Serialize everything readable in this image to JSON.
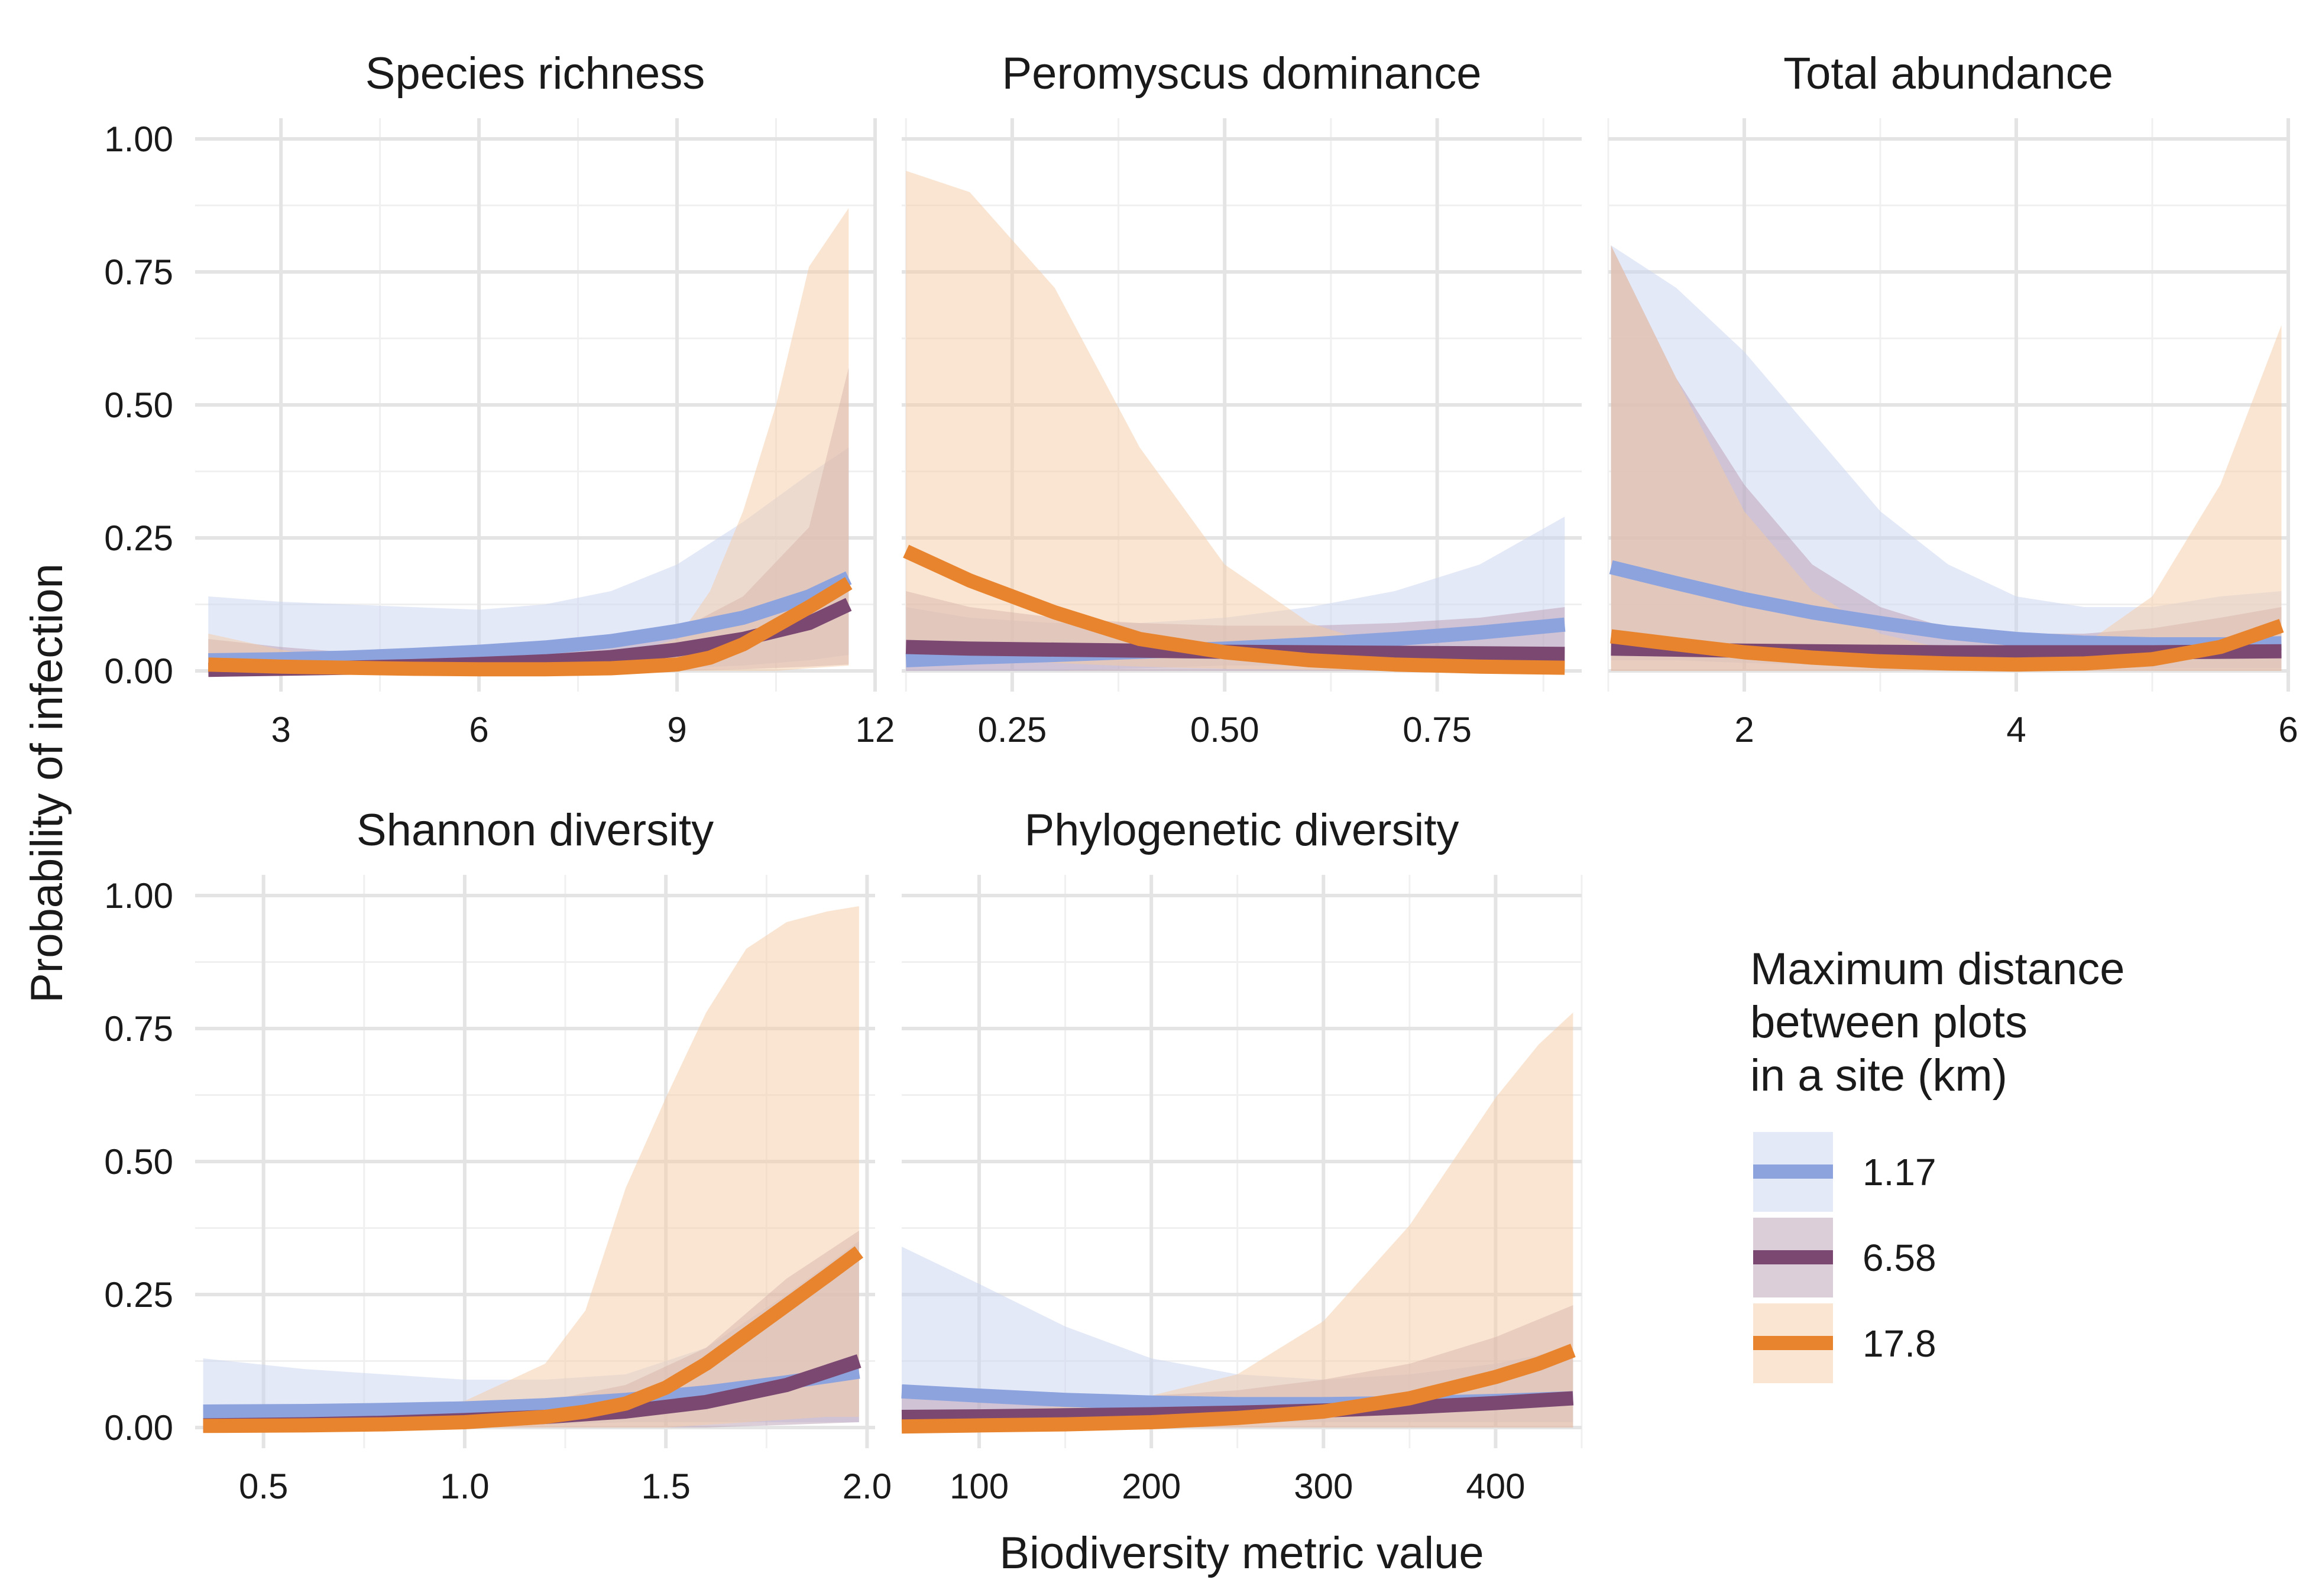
{
  "chart_data": {
    "type": "line",
    "ylabel": "Probability of infection",
    "xlabel": "Biodiversity metric value",
    "ylim": [
      0,
      1
    ],
    "y_ticks": [
      0,
      0.25,
      0.5,
      0.75,
      1
    ],
    "y_tick_labels": [
      "0.00",
      "0.25",
      "0.50",
      "0.75",
      "1.00"
    ],
    "grid": true,
    "facet_order": [
      "richness",
      "dominance",
      "abundance",
      "shannon",
      "phylo"
    ],
    "legend": {
      "position": "right",
      "title": [
        "Maximum distance",
        "between plots",
        "in a site (km)"
      ],
      "entries": [
        {
          "key": "s117",
          "label": "1.17",
          "line_color": "#8DA3DE",
          "fill_color": "#C9D3F1"
        },
        {
          "key": "s658",
          "label": "6.58",
          "line_color": "#7B4871",
          "fill_color": "#B99DB2"
        },
        {
          "key": "s178",
          "label": "17.8",
          "line_color": "#E8842E",
          "fill_color": "#F6CBA6"
        }
      ]
    },
    "facets": {
      "richness": {
        "title": "Species richness",
        "xlim": [
          1.7,
          12
        ],
        "x_ticks": [
          3,
          6,
          9,
          12
        ],
        "x_tick_labels": [
          "3",
          "6",
          "9",
          "12"
        ],
        "series": {
          "s117": {
            "x": [
              1.9,
              3,
              4,
              5,
              6,
              7,
              8,
              9,
              10,
              11,
              11.6
            ],
            "y": [
              0.02,
              0.022,
              0.025,
              0.03,
              0.036,
              0.044,
              0.056,
              0.075,
              0.1,
              0.14,
              0.175
            ],
            "lo": [
              0,
              0,
              0,
              0,
              0,
              0,
              0,
              0.005,
              0.01,
              0.02,
              0.03
            ],
            "hi": [
              0.14,
              0.13,
              0.125,
              0.12,
              0.115,
              0.125,
              0.15,
              0.2,
              0.28,
              0.37,
              0.42
            ]
          },
          "s658": {
            "x": [
              1.9,
              3,
              4,
              5,
              6,
              7,
              8,
              9,
              10,
              11,
              11.6
            ],
            "y": [
              0.002,
              0.004,
              0.006,
              0.009,
              0.013,
              0.018,
              0.026,
              0.04,
              0.06,
              0.09,
              0.125
            ],
            "lo": [
              0,
              0,
              0,
              0,
              0,
              0,
              0,
              0,
              0.003,
              0.008,
              0.012
            ],
            "hi": [
              0.06,
              0.045,
              0.035,
              0.03,
              0.028,
              0.032,
              0.045,
              0.075,
              0.14,
              0.27,
              0.57
            ]
          },
          "s178": {
            "x": [
              1.9,
              3,
              4,
              5,
              6,
              7,
              8,
              9,
              9.5,
              10,
              10.5,
              11,
              11.6
            ],
            "y": [
              0.012,
              0.008,
              0.006,
              0.004,
              0.003,
              0.003,
              0.005,
              0.012,
              0.025,
              0.05,
              0.085,
              0.12,
              0.165
            ],
            "lo": [
              0,
              0,
              0,
              0,
              0,
              0,
              0,
              0,
              0,
              0,
              0,
              0.005,
              0.01
            ],
            "hi": [
              0.07,
              0.04,
              0.02,
              0.015,
              0.012,
              0.013,
              0.025,
              0.06,
              0.15,
              0.3,
              0.5,
              0.76,
              0.87
            ]
          }
        }
      },
      "dominance": {
        "title": "Peromyscus dominance",
        "xlim": [
          0.12,
          0.92
        ],
        "x_ticks": [
          0.25,
          0.5,
          0.75
        ],
        "x_tick_labels": [
          "0.25",
          "0.50",
          "0.75"
        ],
        "series": {
          "s117": {
            "x": [
              0.125,
              0.2,
              0.3,
              0.4,
              0.5,
              0.6,
              0.7,
              0.8,
              0.9
            ],
            "y": [
              0.02,
              0.025,
              0.03,
              0.036,
              0.042,
              0.05,
              0.06,
              0.072,
              0.087
            ],
            "lo": [
              0,
              0,
              0,
              0.005,
              0.01,
              0.01,
              0.01,
              0.01,
              0.01
            ],
            "hi": [
              0.12,
              0.1,
              0.09,
              0.09,
              0.1,
              0.12,
              0.15,
              0.2,
              0.29
            ]
          },
          "s658": {
            "x": [
              0.125,
              0.2,
              0.3,
              0.4,
              0.5,
              0.6,
              0.7,
              0.8,
              0.9
            ],
            "y": [
              0.045,
              0.042,
              0.04,
              0.038,
              0.036,
              0.035,
              0.034,
              0.033,
              0.032
            ],
            "lo": [
              0,
              0,
              0,
              0,
              0,
              0,
              0,
              0,
              0
            ],
            "hi": [
              0.15,
              0.12,
              0.1,
              0.09,
              0.085,
              0.085,
              0.09,
              0.1,
              0.12
            ]
          },
          "s178": {
            "x": [
              0.125,
              0.2,
              0.3,
              0.4,
              0.5,
              0.6,
              0.7,
              0.8,
              0.9
            ],
            "y": [
              0.225,
              0.17,
              0.11,
              0.06,
              0.035,
              0.02,
              0.012,
              0.008,
              0.006
            ],
            "lo": [
              0.05,
              0.03,
              0.015,
              0.008,
              0.004,
              0.002,
              0.001,
              0,
              0
            ],
            "hi": [
              0.94,
              0.9,
              0.72,
              0.42,
              0.2,
              0.09,
              0.04,
              0.02,
              0.015
            ]
          }
        }
      },
      "abundance": {
        "title": "Total abundance",
        "xlim": [
          1,
          6
        ],
        "x_ticks": [
          2,
          4,
          6
        ],
        "x_tick_labels": [
          "2",
          "4",
          "6"
        ],
        "series": {
          "s117": {
            "x": [
              1.02,
              1.5,
              2,
              2.5,
              3,
              3.5,
              4,
              4.5,
              5,
              5.5,
              5.95
            ],
            "y": [
              0.195,
              0.165,
              0.135,
              0.11,
              0.09,
              0.072,
              0.06,
              0.053,
              0.05,
              0.05,
              0.052
            ],
            "lo": [
              0.02,
              0.02,
              0.015,
              0.012,
              0.01,
              0.008,
              0.007,
              0.006,
              0.005,
              0.005,
              0.005
            ],
            "hi": [
              0.8,
              0.72,
              0.6,
              0.45,
              0.3,
              0.2,
              0.14,
              0.12,
              0.12,
              0.14,
              0.15
            ]
          },
          "s658": {
            "x": [
              1.02,
              1.5,
              2,
              2.5,
              3,
              3.5,
              4,
              4.5,
              5,
              5.5,
              5.95
            ],
            "y": [
              0.042,
              0.04,
              0.038,
              0.037,
              0.036,
              0.035,
              0.035,
              0.035,
              0.035,
              0.036,
              0.037
            ],
            "lo": [
              0,
              0,
              0,
              0,
              0,
              0,
              0,
              0,
              0,
              0,
              0
            ],
            "hi": [
              0.8,
              0.55,
              0.35,
              0.2,
              0.12,
              0.08,
              0.07,
              0.07,
              0.08,
              0.1,
              0.12
            ]
          },
          "s178": {
            "x": [
              1.02,
              1.5,
              2,
              2.5,
              3,
              3.5,
              4,
              4.5,
              5,
              5.5,
              5.95
            ],
            "y": [
              0.065,
              0.05,
              0.035,
              0.025,
              0.018,
              0.014,
              0.012,
              0.014,
              0.022,
              0.045,
              0.085
            ],
            "lo": [
              0,
              0,
              0,
              0,
              0,
              0,
              0,
              0,
              0,
              0,
              0
            ],
            "hi": [
              0.8,
              0.55,
              0.3,
              0.15,
              0.07,
              0.04,
              0.03,
              0.05,
              0.14,
              0.35,
              0.65
            ]
          }
        }
      },
      "shannon": {
        "title": "Shannon diversity",
        "xlim": [
          0.33,
          2.02
        ],
        "x_ticks": [
          0.5,
          1.0,
          1.5,
          2.0
        ],
        "x_tick_labels": [
          "0.5",
          "1.0",
          "1.5",
          "2.0"
        ],
        "series": {
          "s117": {
            "x": [
              0.35,
              0.6,
              0.8,
              1.0,
              1.2,
              1.4,
              1.6,
              1.8,
              1.98
            ],
            "y": [
              0.03,
              0.031,
              0.033,
              0.036,
              0.042,
              0.052,
              0.066,
              0.085,
              0.105
            ],
            "lo": [
              0,
              0,
              0,
              0,
              0.005,
              0.01,
              0.01,
              0.01,
              0.01
            ],
            "hi": [
              0.13,
              0.11,
              0.1,
              0.09,
              0.09,
              0.1,
              0.15,
              0.25,
              0.35
            ]
          },
          "s658": {
            "x": [
              0.35,
              0.6,
              0.8,
              1.0,
              1.2,
              1.4,
              1.6,
              1.8,
              1.98
            ],
            "y": [
              0.004,
              0.006,
              0.009,
              0.014,
              0.02,
              0.03,
              0.048,
              0.08,
              0.125
            ],
            "lo": [
              0,
              0,
              0,
              0,
              0,
              0,
              0,
              0.005,
              0.01
            ],
            "hi": [
              0.04,
              0.035,
              0.035,
              0.04,
              0.05,
              0.08,
              0.15,
              0.28,
              0.37
            ]
          },
          "s178": {
            "x": [
              0.35,
              0.6,
              0.8,
              1.0,
              1.2,
              1.3,
              1.4,
              1.5,
              1.6,
              1.7,
              1.8,
              1.9,
              1.98
            ],
            "y": [
              0.003,
              0.004,
              0.006,
              0.01,
              0.02,
              0.03,
              0.045,
              0.075,
              0.12,
              0.175,
              0.23,
              0.285,
              0.33
            ],
            "lo": [
              0,
              0,
              0,
              0,
              0,
              0,
              0,
              0,
              0.005,
              0.01,
              0.015,
              0.02,
              0.02
            ],
            "hi": [
              0.035,
              0.03,
              0.035,
              0.05,
              0.12,
              0.22,
              0.45,
              0.62,
              0.78,
              0.9,
              0.95,
              0.97,
              0.98
            ]
          }
        }
      },
      "phylo": {
        "title": "Phylogenetic diversity",
        "xlim": [
          55,
          450
        ],
        "x_ticks": [
          100,
          200,
          300,
          400
        ],
        "x_tick_labels": [
          "100",
          "200",
          "300",
          "400"
        ],
        "series": {
          "s117": {
            "x": [
              55,
              100,
              150,
              200,
              250,
              300,
              350,
              400,
              445
            ],
            "y": [
              0.068,
              0.06,
              0.052,
              0.047,
              0.044,
              0.044,
              0.046,
              0.05,
              0.055
            ],
            "lo": [
              0.005,
              0.008,
              0.01,
              0.01,
              0.01,
              0.01,
              0.01,
              0.01,
              0.01
            ],
            "hi": [
              0.34,
              0.27,
              0.19,
              0.13,
              0.1,
              0.09,
              0.1,
              0.12,
              0.15
            ]
          },
          "s658": {
            "x": [
              55,
              100,
              150,
              200,
              250,
              300,
              350,
              400,
              445
            ],
            "y": [
              0.02,
              0.021,
              0.023,
              0.025,
              0.028,
              0.032,
              0.038,
              0.046,
              0.055
            ],
            "lo": [
              0,
              0,
              0,
              0,
              0,
              0,
              0,
              0,
              0
            ],
            "hi": [
              0.08,
              0.07,
              0.06,
              0.06,
              0.07,
              0.09,
              0.12,
              0.17,
              0.23
            ]
          },
          "s178": {
            "x": [
              55,
              100,
              150,
              200,
              250,
              300,
              350,
              375,
              400,
              425,
              445
            ],
            "y": [
              0.002,
              0.004,
              0.006,
              0.01,
              0.018,
              0.03,
              0.055,
              0.075,
              0.095,
              0.12,
              0.145
            ],
            "lo": [
              0,
              0,
              0,
              0,
              0,
              0,
              0,
              0,
              0,
              0,
              0
            ],
            "hi": [
              0.03,
              0.03,
              0.04,
              0.06,
              0.1,
              0.2,
              0.38,
              0.5,
              0.62,
              0.72,
              0.78
            ]
          }
        }
      }
    }
  }
}
